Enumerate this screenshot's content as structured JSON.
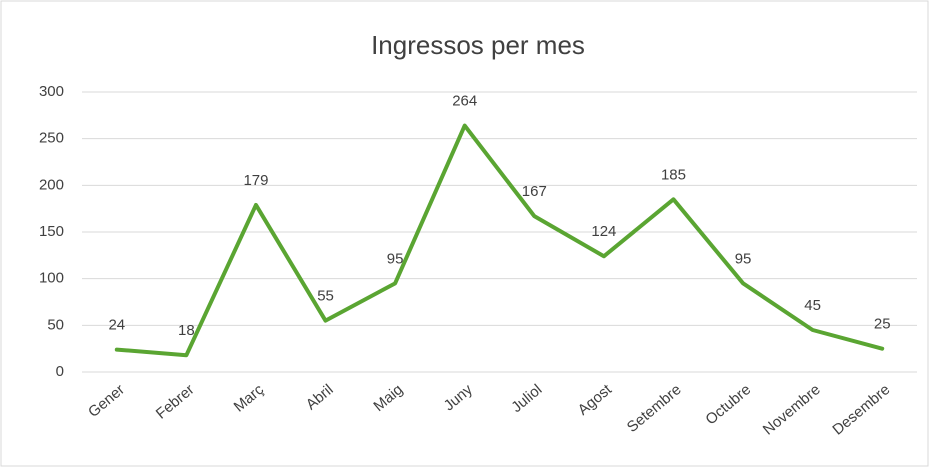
{
  "chart_data": {
    "type": "line",
    "title": "Ingressos per mes",
    "categories": [
      "Gener",
      "Febrer",
      "Març",
      "Abril",
      "Maig",
      "Juny",
      "Juliol",
      "Agost",
      "Setembre",
      "Octubre",
      "Novembre",
      "Desembre"
    ],
    "series": [
      {
        "name": "Ingressos",
        "color": "#5aa532",
        "values": [
          24,
          18,
          179,
          55,
          95,
          264,
          167,
          124,
          185,
          95,
          45,
          25
        ]
      }
    ],
    "ylim": [
      0,
      300
    ],
    "yticks": [
      0,
      50,
      100,
      150,
      200,
      250,
      300
    ],
    "grid": true
  }
}
